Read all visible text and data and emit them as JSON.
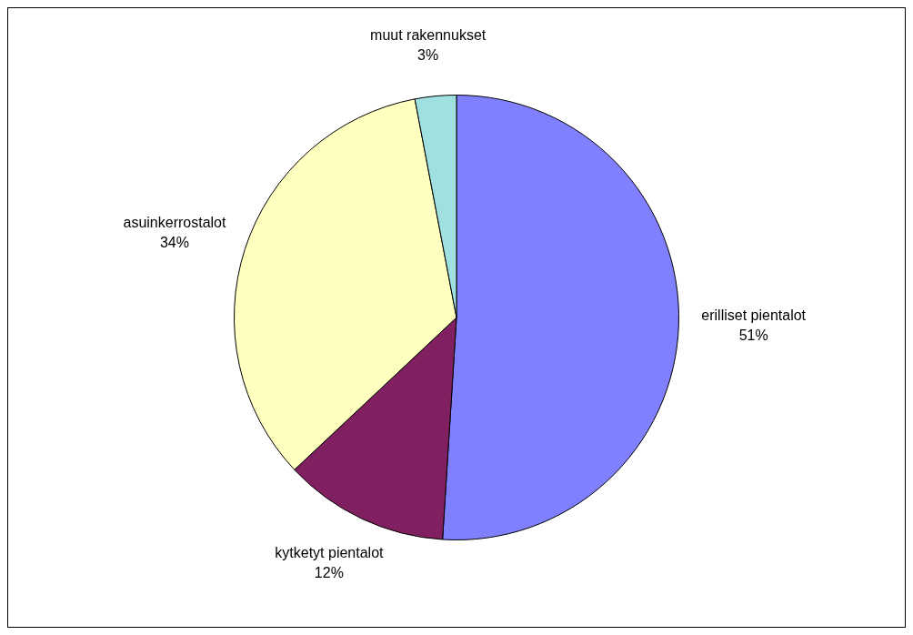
{
  "chart_data": {
    "type": "pie",
    "categories": [
      "erilliset pientalot",
      "kytketyt pientalot",
      "asuinkerrostalot",
      "muut rakennukset"
    ],
    "values": [
      51,
      12,
      34,
      3
    ],
    "colors": [
      "#8080ff",
      "#802060",
      "#ffffc0",
      "#a0e0e0"
    ],
    "value_labels": [
      "51%",
      "12%",
      "34%",
      "3%"
    ],
    "legend": false
  }
}
